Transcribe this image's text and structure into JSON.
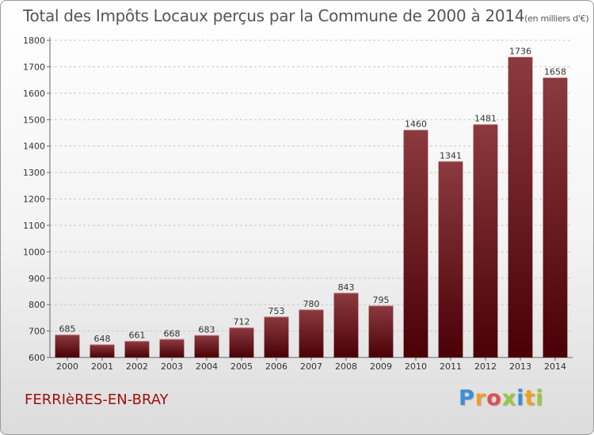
{
  "title": "Total des Impôts Locaux perçus par la Commune de 2000 à 2014",
  "title_unit": "(en milliers d'€)",
  "commune": "FERRIèRES-EN-BRAY",
  "logo": {
    "letters": [
      {
        "char": "P",
        "color": "#3a8fd8"
      },
      {
        "char": "r",
        "color": "#f0a020"
      },
      {
        "char": "o",
        "color": "#e05050"
      },
      {
        "char": "x",
        "color": "#9bc640"
      },
      {
        "char": "i",
        "color": "#3a8fd8"
      },
      {
        "char": "t",
        "color": "#f0a020"
      },
      {
        "char": "i",
        "color": "#9bc640"
      }
    ]
  },
  "chart_data": {
    "type": "bar",
    "categories": [
      "2000",
      "2001",
      "2002",
      "2003",
      "2004",
      "2005",
      "2006",
      "2007",
      "2008",
      "2009",
      "2010",
      "2011",
      "2012",
      "2013",
      "2014"
    ],
    "values": [
      685,
      648,
      661,
      668,
      683,
      712,
      753,
      780,
      843,
      795,
      1460,
      1341,
      1481,
      1736,
      1658
    ],
    "data_labels": [
      "685",
      "648",
      "661",
      "668",
      "683",
      "712",
      "753",
      "780",
      "843",
      "795",
      "1460",
      "1341",
      "1481",
      "1736",
      "1658"
    ],
    "yticks": [
      600,
      700,
      800,
      900,
      1000,
      1100,
      1200,
      1300,
      1400,
      1500,
      1600,
      1700,
      1800
    ],
    "ylim": [
      600,
      1800
    ],
    "grid": "horizontal-dashed",
    "bar_color_top": "#8b3a3f",
    "bar_color_bottom": "#4a0006",
    "xlabel": "",
    "ylabel": ""
  }
}
